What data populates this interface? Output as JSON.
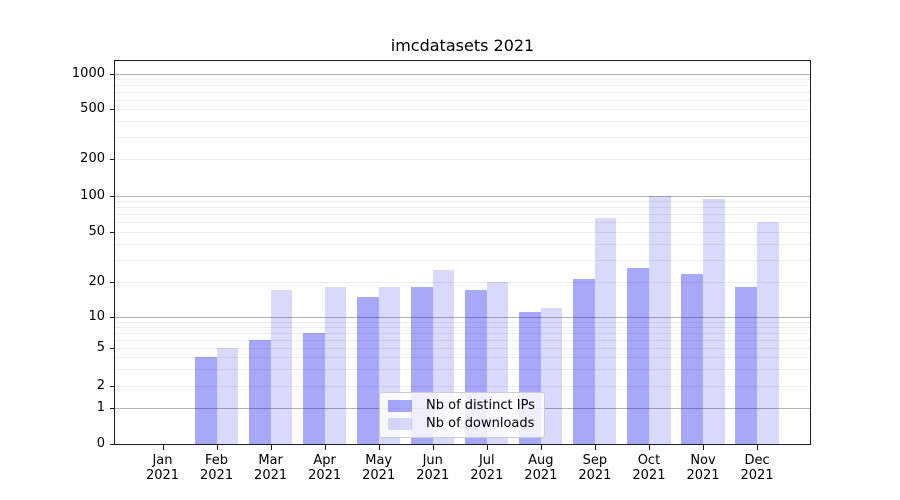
{
  "chart_data": {
    "type": "bar",
    "title": "imcdatasets 2021",
    "categories": [
      "Jan",
      "Feb",
      "Mar",
      "Apr",
      "May",
      "Jun",
      "Jul",
      "Aug",
      "Sep",
      "Oct",
      "Nov",
      "Dec"
    ],
    "year_label": "2021",
    "series": [
      {
        "name": "Nb of distinct IPs",
        "color": "rgba(0,0,235,0.34)",
        "values": [
          0,
          4,
          6,
          7,
          15,
          18,
          17,
          11,
          21,
          26,
          23,
          18
        ]
      },
      {
        "name": "Nb of downloads",
        "color": "rgba(0,0,235,0.15)",
        "values": [
          0,
          5,
          17,
          18,
          18,
          25,
          20,
          12,
          65,
          100,
          95,
          60
        ]
      }
    ],
    "xlabel": "",
    "ylabel": "",
    "yscale": "symlog",
    "ylim": [
      0,
      1310
    ],
    "yticks": [
      0,
      1,
      2,
      5,
      10,
      20,
      50,
      100,
      200,
      500,
      1000
    ],
    "ytick_labels": [
      "0",
      "1",
      "2",
      "5",
      "10",
      "20",
      "50",
      "100",
      "200",
      "500",
      "1000"
    ],
    "major_gridlines": [
      1,
      10,
      100,
      1000
    ],
    "minor_gridlines": [
      2,
      3,
      4,
      5,
      6,
      7,
      8,
      9,
      20,
      30,
      40,
      50,
      60,
      70,
      80,
      90,
      200,
      300,
      400,
      500,
      600,
      700,
      800,
      900
    ],
    "grid": true,
    "legend": {
      "position": "lower-center",
      "items": [
        "Nb of distinct IPs",
        "Nb of downloads"
      ]
    },
    "style": {
      "major_grid_color": "#b2b2b2",
      "minor_grid_color": "#ededed",
      "spine_color": "#1c1c1c",
      "ips_bar_color": "rgba(0,0,235,0.34)",
      "downloads_bar_color": "rgba(0,0,235,0.15)",
      "legend_border_color": "#cccccc"
    }
  }
}
